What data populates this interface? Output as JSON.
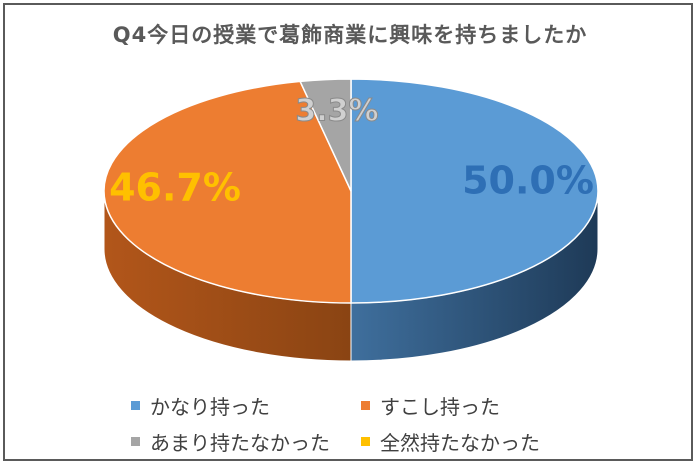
{
  "chart_data": {
    "type": "pie",
    "title": "Q4今日の授業で葛飾商業に興味を持ちましたか",
    "categories": [
      "かなり持った",
      "すこし持った",
      "あまり持たなかった",
      "全然持たなかった"
    ],
    "values": [
      50.0,
      46.7,
      3.3,
      0.0
    ],
    "data_labels": [
      "50.0%",
      "46.7%",
      "3.3%",
      ""
    ],
    "colors": [
      "#5b9bd5",
      "#ed7d31",
      "#a5a5a5",
      "#ffc000"
    ],
    "label_colors": [
      "#2e6fb5",
      "#ffc000",
      "#d0d0d0",
      "#ffc000"
    ],
    "style": "3d",
    "legend": "bottom"
  }
}
